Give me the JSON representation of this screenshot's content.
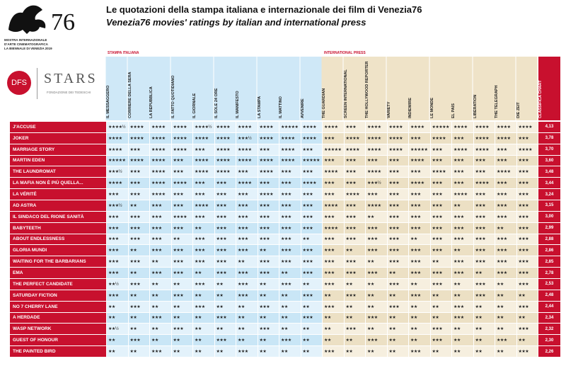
{
  "logo": {
    "number": "76",
    "lines": [
      "MOSTRA INTERNAZIONALE",
      "D'ARTE CINEMATOGRAFICA",
      "LA BIENNALE DI VENEZIA 2019"
    ],
    "sponsor": "DFS",
    "stars": "STARS",
    "stars_sub": "FONDAZIONE DEI TEDESCHI"
  },
  "header": {
    "title": "Le quotazioni della stampa italiana e internazionale dei film di Venezia76",
    "subtitle": "Venezia76 movies' ratings by italian and international press"
  },
  "table": {
    "groups": [
      "STAMPA ITALIANA",
      "INTERNATIONAL PRESS"
    ],
    "italian_columns": [
      "IL MESSAGGERO",
      "CORRIERE DELLA SERA",
      "LA REPUBBLICA",
      "IL FATTO QUOTIDIANO",
      "IL GIORNALE",
      "IL SOLE 24 ORE",
      "IL MANIFESTO",
      "LA STAMPA",
      "IL MATTINO",
      "AVVENIRE"
    ],
    "international_columns": [
      "THE GUARDIAN",
      "SCREEN INTERNATIONAL",
      "THE HOLLYWOOD REPORTER",
      "VARIETY",
      "INDIEWIRE",
      "LE MONDE",
      "EL PAÍS",
      "LIBÉRATION",
      "THE TELEGRAPH",
      "DIE ZEIT"
    ],
    "score_column": "CLASSIFICA CHART",
    "rows": [
      {
        "film": "J'ACCUSE",
        "ratings": [
          "★★★★½",
          "★★★★",
          "★★★★",
          "★★★★",
          "★★★★½",
          "★★★★",
          "★★★★",
          "★★★★",
          "★★★★★",
          "★★★★",
          "★★★★",
          "★★★",
          "★★★★",
          "★★★★",
          "★★★★",
          "★★★★★",
          "★★★★",
          "★★★★",
          "★★★★",
          "★★★★"
        ],
        "score": "4,13"
      },
      {
        "film": "JOKER",
        "ratings": [
          "★★★★",
          "★★★★",
          "★★★★",
          "★★★★",
          "★★★★",
          "★★★★",
          "★★★½",
          "★★★★",
          "★★★★",
          "★★★★",
          "★★★",
          "★★★★",
          "★★★★",
          "★★★★",
          "★★★",
          "★★★★",
          "★★★",
          "★★★★",
          "★★★★",
          "★★★"
        ],
        "score": "3,78"
      },
      {
        "film": "MARRIAGE STORY",
        "ratings": [
          "★★★★",
          "★★★",
          "★★★★",
          "★★★★",
          "★★★",
          "★★★★",
          "★★★★",
          "★★★",
          "★★★★",
          "★★★",
          "★★★★★",
          "★★★★",
          "★★★★",
          "★★★★",
          "★★★★★",
          "★★★",
          "★★★★",
          "★★★★",
          "★★★",
          "★★★★"
        ],
        "score": "3,70"
      },
      {
        "film": "MARTIN EDEN",
        "ratings": [
          "★★★★★",
          "★★★★",
          "★★★★",
          "★★★",
          "★★★★",
          "★★★★",
          "★★★★",
          "★★★★",
          "★★★★",
          "★★★★★",
          "★★★",
          "★★★",
          "★★★",
          "★★★",
          "★★★★",
          "★★★",
          "★★★",
          "★★★",
          "★★★",
          "★★★"
        ],
        "score": "3,60"
      },
      {
        "film": "THE LAUNDROMAT",
        "ratings": [
          "★★★½",
          "★★★",
          "★★★★",
          "★★★",
          "★★★★",
          "★★★★",
          "★★★",
          "★★★★",
          "★★★",
          "★★★",
          "★★★★",
          "★★★",
          "★★★★",
          "★★★",
          "★★★",
          "★★★★",
          "★★★",
          "★★★",
          "★★★★",
          "★★★"
        ],
        "score": "3,48"
      },
      {
        "film": "LA MAFIA NON È PIÙ QUELLA...",
        "ratings": [
          "★★★★",
          "★★★",
          "★★★★",
          "★★★★",
          "★★★",
          "★★★",
          "★★★★",
          "★★★",
          "★★★",
          "★★★★",
          "★★★",
          "★★★",
          "★★★½",
          "★★★",
          "★★★★",
          "★★★",
          "★★★",
          "★★★★",
          "★★★",
          "★★★"
        ],
        "score": "3,44"
      },
      {
        "film": "LA VÉRITÉ",
        "ratings": [
          "★★★",
          "★★★",
          "★★★★",
          "★★★",
          "★★★",
          "★★★",
          "★★★",
          "★★★★",
          "★★★",
          "★★★",
          "★★★",
          "★★★★",
          "★★★",
          "★★★",
          "★★★",
          "★★★",
          "★★★★",
          "★★★",
          "★★★",
          "★★★"
        ],
        "score": "3,24"
      },
      {
        "film": "AD ASTRA",
        "ratings": [
          "★★★½",
          "★★",
          "★★★",
          "★★★",
          "★★★★",
          "★★★",
          "★★★",
          "★★★",
          "★★★",
          "★★★",
          "★★★★",
          "★★★",
          "★★★★",
          "★★★",
          "★★★",
          "★★★",
          "★★",
          "★★★",
          "★★★",
          "★★★"
        ],
        "score": "3,15"
      },
      {
        "film": "IL SINDACO DEL RIONE SANITÀ",
        "ratings": [
          "★★★",
          "★★★",
          "★★★",
          "★★★★",
          "★★★",
          "★★★",
          "★★★",
          "★★★",
          "★★★",
          "★★★",
          "★★★",
          "★★★",
          "★★",
          "★★★",
          "★★★",
          "★★★",
          "★★★",
          "★★★",
          "★★★",
          "★★★"
        ],
        "score": "3,00"
      },
      {
        "film": "BABYTEETH",
        "ratings": [
          "★★★",
          "★★★",
          "★★★",
          "★★★",
          "★★",
          "★★★",
          "★★★",
          "★★★",
          "★★★",
          "★★★",
          "★★★★",
          "★★★",
          "★★★",
          "★★★",
          "★★★",
          "★★★",
          "★★★",
          "★★★",
          "★★",
          "★★★"
        ],
        "score": "2,99"
      },
      {
        "film": "ABOUT ENDLESSNESS",
        "ratings": [
          "★★★",
          "★★★",
          "★★★",
          "★★",
          "★★★",
          "★★★",
          "★★★",
          "★★★",
          "★★★",
          "★★",
          "★★★",
          "★★★",
          "★★★",
          "★★★",
          "★★",
          "★★★",
          "★★★",
          "★★★",
          "★★★",
          "★★★"
        ],
        "score": "2,88"
      },
      {
        "film": "GLORIA MUNDI",
        "ratings": [
          "★★★",
          "★★",
          "★★★",
          "★★★",
          "★★★",
          "★★★",
          "★★★",
          "★★",
          "★★★",
          "★★★",
          "★★★",
          "★★",
          "★★★",
          "★★★",
          "★★★",
          "★★★",
          "★★",
          "★★★",
          "★★★",
          "★★★"
        ],
        "score": "2,86"
      },
      {
        "film": "WAITING FOR THE BARBARIANS",
        "ratings": [
          "★★★",
          "★★★",
          "★★",
          "★★★",
          "★★★",
          "★★★",
          "★★",
          "★★★",
          "★★★",
          "★★★",
          "★★★",
          "★★★",
          "★★",
          "★★★",
          "★★★",
          "★★",
          "★★★",
          "★★★",
          "★★★",
          "★★★"
        ],
        "score": "2,85"
      },
      {
        "film": "EMA",
        "ratings": [
          "★★★",
          "★★",
          "★★★",
          "★★★",
          "★★",
          "★★★",
          "★★★",
          "★★★",
          "★★",
          "★★★",
          "★★★",
          "★★★",
          "★★★",
          "★★",
          "★★★",
          "★★★",
          "★★★",
          "★★",
          "★★★",
          "★★★"
        ],
        "score": "2,78"
      },
      {
        "film": "THE PERFECT CANDIDATE",
        "ratings": [
          "★★½",
          "★★★",
          "★★",
          "★★",
          "★★★",
          "★★",
          "★★★",
          "★★",
          "★★★",
          "★★",
          "★★★",
          "★★",
          "★★",
          "★★★",
          "★★",
          "★★★",
          "★★",
          "★★★",
          "★★",
          "★★★"
        ],
        "score": "2,53"
      },
      {
        "film": "SATURDAY FICTION",
        "ratings": [
          "★★★",
          "★★",
          "★★",
          "★★★",
          "★★",
          "★★",
          "★★★",
          "★★",
          "★★",
          "★★★",
          "★★",
          "★★★",
          "★★",
          "★★",
          "★★★",
          "★★",
          "★★",
          "★★★",
          "★★",
          "★★"
        ],
        "score": "2,48"
      },
      {
        "film": "NO 7 CHERRY LANE",
        "ratings": [
          "★★",
          "★★★",
          "★★",
          "★★",
          "★★★",
          "★★",
          "★★",
          "★★★",
          "★★",
          "★★",
          "★★★",
          "★★",
          "★★",
          "★★★",
          "★★",
          "★★",
          "★★★",
          "★★",
          "★★",
          "★★★"
        ],
        "score": "2,44"
      },
      {
        "film": "A HERDADE",
        "ratings": [
          "★★",
          "★★",
          "★★★",
          "★★",
          "★★",
          "★★★",
          "★★",
          "★★",
          "★★",
          "★★★",
          "★★",
          "★★",
          "★★★",
          "★★",
          "★★",
          "★★",
          "★★★",
          "★★",
          "★★",
          "★★"
        ],
        "score": "2,34"
      },
      {
        "film": "WASP NETWORK",
        "ratings": [
          "★★½",
          "★★",
          "★★",
          "★★★",
          "★★",
          "★★",
          "★★",
          "★★★",
          "★★",
          "★★",
          "★★",
          "★★★",
          "★★",
          "★★",
          "★★",
          "★★★",
          "★★",
          "★★",
          "★★",
          "★★★"
        ],
        "score": "2,32"
      },
      {
        "film": "GUEST OF HONOUR",
        "ratings": [
          "★★",
          "★★★",
          "★★",
          "★★",
          "★★",
          "★★★",
          "★★",
          "★★",
          "★★★",
          "★★",
          "★★",
          "★★",
          "★★★",
          "★★",
          "★★",
          "★★★",
          "★★",
          "★★",
          "★★★",
          "★★"
        ],
        "score": "2,30"
      },
      {
        "film": "THE PAINTED BIRD",
        "ratings": [
          "★★",
          "★★",
          "★★★",
          "★★",
          "★★",
          "★★",
          "★★★",
          "★★",
          "★★",
          "★★",
          "★★★",
          "★★",
          "★★",
          "★★",
          "★★★",
          "★★",
          "★★",
          "★★",
          "★★",
          "★★★"
        ],
        "score": "2,26"
      }
    ]
  }
}
